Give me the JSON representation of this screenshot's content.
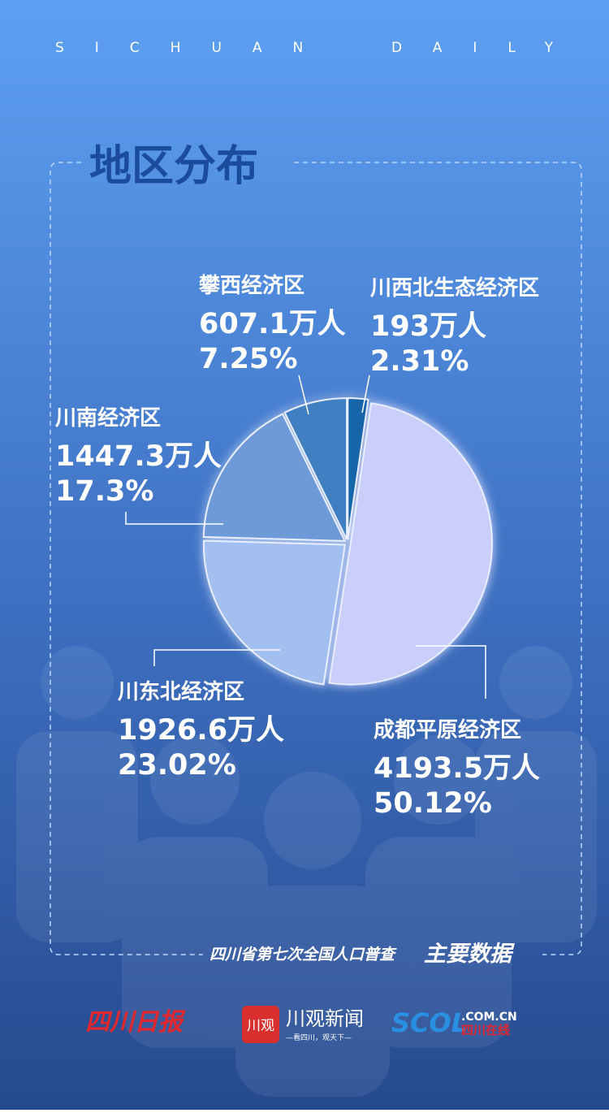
{
  "header": {
    "left": "SICHUAN",
    "right": "DAILY"
  },
  "chart_data": {
    "type": "pie",
    "title": "地区分布",
    "categories": [
      "川西北生态经济区",
      "成都平原经济区",
      "川东北经济区",
      "川南经济区",
      "攀西经济区"
    ],
    "values": [
      2.31,
      50.12,
      23.02,
      17.3,
      7.25
    ],
    "value_labels": [
      "2.31%",
      "50.12%",
      "23.02%",
      "17.3%",
      "7.25%"
    ],
    "population_labels": [
      "193万人",
      "4193.5万人",
      "1926.6万人",
      "1447.3万人",
      "607.1万人"
    ],
    "colors": [
      "#1565a8",
      "#c9cefa",
      "#a3bff0",
      "#6e9bd8",
      "#3f80c2"
    ]
  },
  "footer": {
    "caption_a": "四川省第七次全国人口普查",
    "caption_b": "主要数据",
    "logo_1": "四川日报",
    "logo_2_icon": "川观",
    "logo_2": "川观新闻",
    "logo_2_slogan": "—看四川，观天下—",
    "logo_3_a": "SCOL",
    "logo_3_b": ".COM.CN",
    "logo_3_c": "四川在线"
  }
}
